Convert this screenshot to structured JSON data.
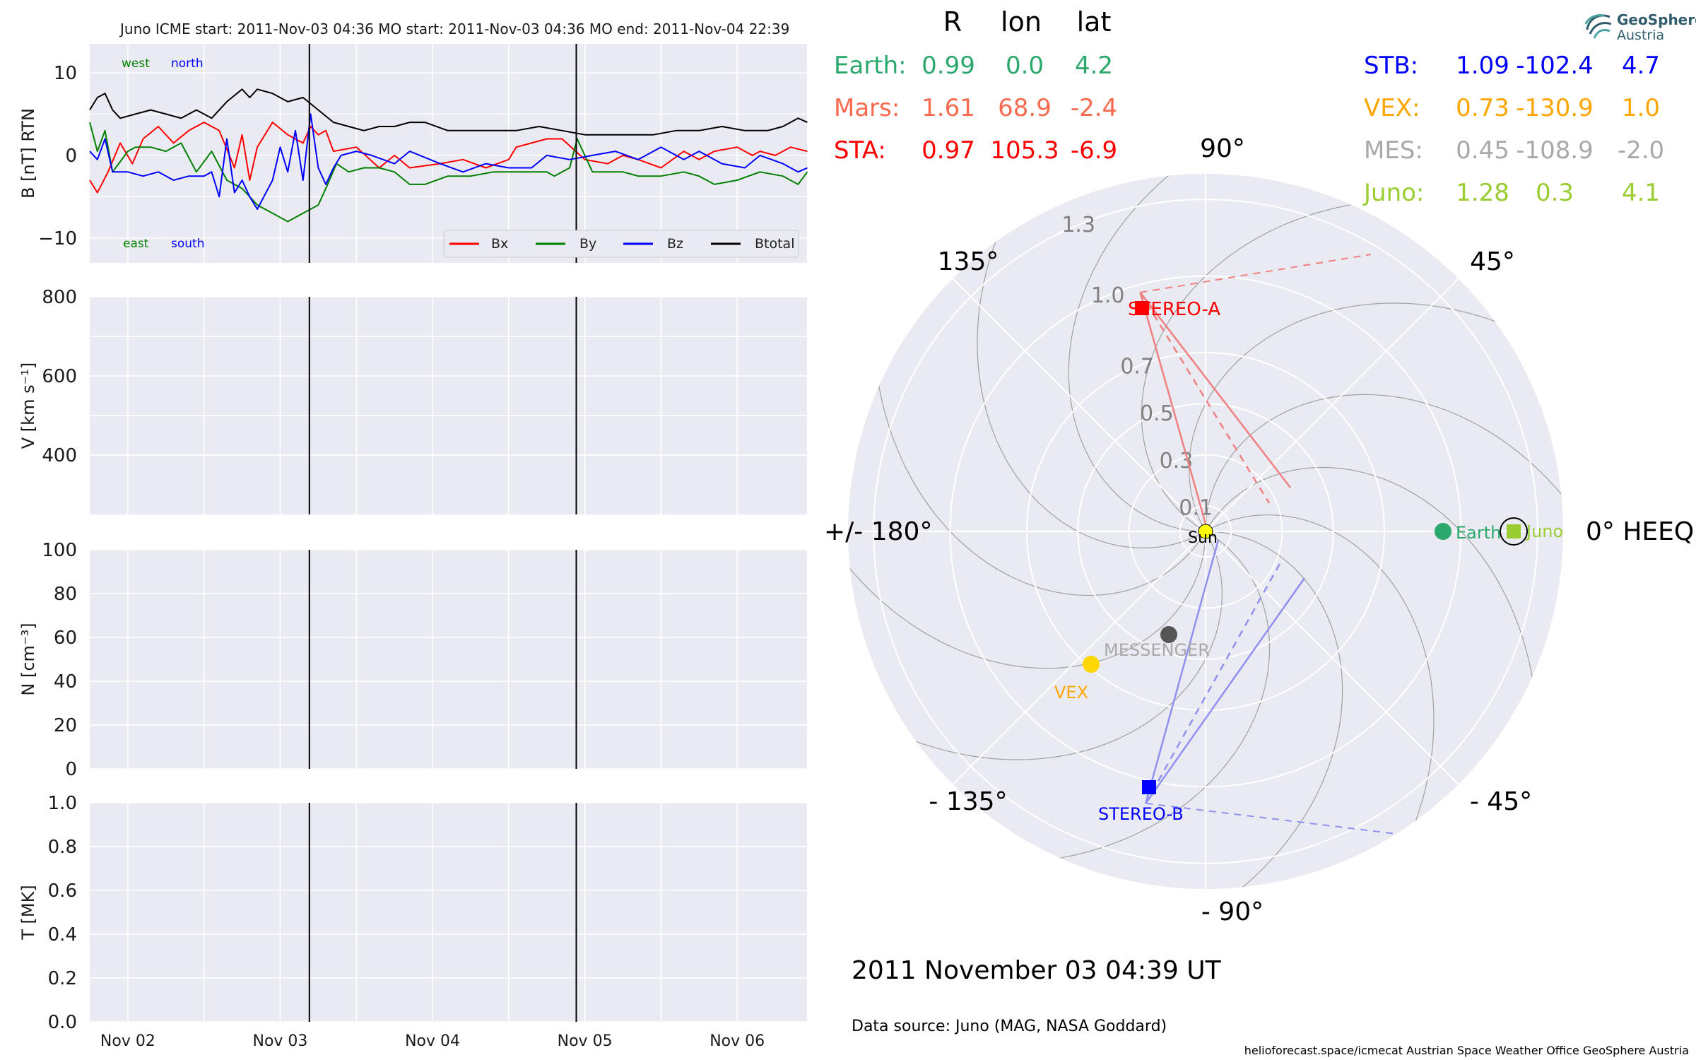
{
  "header": {
    "title": "Juno    ICME start: 2011-Nov-03 04:36   MO start: 2011-Nov-03 04:36   MO end: 2011-Nov-04 22:39"
  },
  "logo": {
    "name1": "GeoSphere",
    "name2": "Austria"
  },
  "positions_table": {
    "columns": [
      "R",
      "lon",
      "lat"
    ],
    "rows_left": [
      {
        "name": "Earth:",
        "R": "0.99",
        "lon": "0.0",
        "lat": "4.2",
        "color": "#2ba86b"
      },
      {
        "name": "Mars:",
        "R": "1.61",
        "lon": "68.9",
        "lat": "-2.4",
        "color": "#fa6a4e"
      },
      {
        "name": "STA:",
        "R": "0.97",
        "lon": "105.3",
        "lat": "-6.9",
        "color": "#ff0000"
      }
    ],
    "rows_right": [
      {
        "name": "STB:",
        "R": "1.09",
        "lon": "-102.4",
        "lat": "4.7",
        "color": "#0000ff"
      },
      {
        "name": "VEX:",
        "R": "0.73",
        "lon": "-130.9",
        "lat": "1.0",
        "color": "#ffa500"
      },
      {
        "name": "MES:",
        "R": "0.45",
        "lon": "-108.9",
        "lat": "-2.0",
        "color": "#a9a9a9"
      },
      {
        "name": "Juno:",
        "R": "1.28",
        "lon": "0.3",
        "lat": "4.1",
        "color": "#9acd32"
      }
    ]
  },
  "polar_plot": {
    "angle_labels": [
      "90°",
      "45°",
      "0° HEEQ",
      "- 45°",
      "- 90°",
      "- 135°",
      "+/- 180°",
      "135°"
    ],
    "radial_labels": [
      "0.1",
      "0.3",
      "0.5",
      "0.7",
      "1.0",
      "1.3"
    ],
    "bodies": [
      {
        "name": "Sun",
        "label": "Sun",
        "r": 0.0,
        "lon": 0.0,
        "shape": "circle",
        "color": "#ffff00",
        "label_color": "#000000"
      },
      {
        "name": "Earth",
        "label": "Earth",
        "r": 0.99,
        "lon": 0.0,
        "shape": "circle",
        "color": "#2ba86b",
        "label_color": "#2ba86b"
      },
      {
        "name": "Juno",
        "label": "Juno",
        "r": 1.28,
        "lon": 0.3,
        "shape": "square",
        "color": "#9acd32",
        "label_color": "#9acd32"
      },
      {
        "name": "STEREO-A",
        "label": "STEREO-A",
        "r": 0.97,
        "lon": 105.3,
        "shape": "square",
        "color": "#ff0000",
        "label_color": "#ff0000"
      },
      {
        "name": "STEREO-B",
        "label": "STEREO-B",
        "r": 1.09,
        "lon": -102.4,
        "shape": "square",
        "color": "#0000ff",
        "label_color": "#0000ff"
      },
      {
        "name": "VEX",
        "label": "VEX",
        "r": 0.73,
        "lon": -130.9,
        "shape": "circle",
        "color": "#ffd700",
        "label_color": "#ffa500"
      },
      {
        "name": "MESSENGER",
        "label": "MESSENGER",
        "r": 0.45,
        "lon": -108.9,
        "shape": "circle",
        "color": "#555555",
        "label_color": "#a9a9a9"
      }
    ],
    "date": "2011 November 03  04:39 UT",
    "data_source": "Data source: Juno (MAG, NASA Goddard)"
  },
  "footer": "helioforecast.space/icmecat   Austrian Space Weather Office   GeoSphere Austria",
  "chart_data": [
    {
      "type": "line",
      "panel": "magnetic-field",
      "ylabel": "B [nT] RTN",
      "ylim": [
        -13,
        13.5
      ],
      "yticks": [
        10,
        0,
        -10
      ],
      "ytick_labels": [
        "10",
        "0",
        "−10"
      ],
      "xlim": [
        "2011-11-01T18:00",
        "2011-11-06T11:00"
      ],
      "annotations": {
        "west": "west",
        "north": "north",
        "east": "east",
        "south": "south"
      },
      "event_lines": [
        "2011-11-03T04:36",
        "2011-11-04T22:39"
      ],
      "legend_position": "lower-right",
      "series": [
        {
          "name": "Bx",
          "color": "#ff0000",
          "values": [
            [
              0.0,
              -3.0
            ],
            [
              0.05,
              -4.5
            ],
            [
              0.12,
              -2.0
            ],
            [
              0.2,
              1.5
            ],
            [
              0.28,
              -1.0
            ],
            [
              0.35,
              2.0
            ],
            [
              0.45,
              3.5
            ],
            [
              0.55,
              1.5
            ],
            [
              0.65,
              3.0
            ],
            [
              0.75,
              4.0
            ],
            [
              0.85,
              3.0
            ],
            [
              0.95,
              -1.5
            ],
            [
              1.0,
              2.5
            ],
            [
              1.05,
              -3.0
            ],
            [
              1.1,
              1.0
            ],
            [
              1.2,
              4.0
            ],
            [
              1.3,
              2.5
            ],
            [
              1.4,
              1.5
            ],
            [
              1.45,
              3.5
            ],
            [
              1.5,
              2.5
            ],
            [
              1.55,
              3.0
            ],
            [
              1.6,
              0.5
            ],
            [
              1.75,
              1.0
            ],
            [
              1.9,
              -1.5
            ],
            [
              2.0,
              0.0
            ],
            [
              2.1,
              -1.5
            ],
            [
              2.3,
              -1.0
            ],
            [
              2.45,
              -0.5
            ],
            [
              2.6,
              -1.5
            ],
            [
              2.75,
              -0.5
            ],
            [
              2.8,
              1.0
            ],
            [
              2.9,
              1.5
            ],
            [
              3.0,
              2.0
            ],
            [
              3.1,
              2.0
            ],
            [
              3.25,
              -0.5
            ],
            [
              3.4,
              -1.0
            ],
            [
              3.5,
              0.0
            ],
            [
              3.6,
              -0.5
            ],
            [
              3.75,
              -1.5
            ],
            [
              3.9,
              0.5
            ],
            [
              4.0,
              -0.5
            ],
            [
              4.1,
              0.5
            ],
            [
              4.25,
              1.0
            ],
            [
              4.35,
              0.0
            ],
            [
              4.4,
              0.5
            ],
            [
              4.5,
              0.0
            ],
            [
              4.6,
              1.0
            ],
            [
              4.71,
              0.5
            ]
          ]
        },
        {
          "name": "By",
          "color": "#008000",
          "values": [
            [
              0.0,
              4.0
            ],
            [
              0.05,
              0.5
            ],
            [
              0.1,
              3.0
            ],
            [
              0.15,
              -2.0
            ],
            [
              0.25,
              0.5
            ],
            [
              0.3,
              1.0
            ],
            [
              0.4,
              1.0
            ],
            [
              0.5,
              0.5
            ],
            [
              0.6,
              1.5
            ],
            [
              0.7,
              -2.0
            ],
            [
              0.8,
              0.5
            ],
            [
              0.9,
              -3.0
            ],
            [
              1.0,
              -4.0
            ],
            [
              1.1,
              -6.0
            ],
            [
              1.2,
              -7.0
            ],
            [
              1.3,
              -8.0
            ],
            [
              1.4,
              -7.0
            ],
            [
              1.5,
              -6.0
            ],
            [
              1.55,
              -4.0
            ],
            [
              1.62,
              -1.0
            ],
            [
              1.7,
              -2.0
            ],
            [
              1.8,
              -1.5
            ],
            [
              1.9,
              -1.5
            ],
            [
              2.0,
              -2.0
            ],
            [
              2.1,
              -3.5
            ],
            [
              2.2,
              -3.5
            ],
            [
              2.35,
              -2.5
            ],
            [
              2.5,
              -2.5
            ],
            [
              2.65,
              -2.0
            ],
            [
              2.8,
              -2.0
            ],
            [
              3.0,
              -2.0
            ],
            [
              3.05,
              -2.5
            ],
            [
              3.15,
              -1.5
            ],
            [
              3.2,
              2.0
            ],
            [
              3.3,
              -2.0
            ],
            [
              3.5,
              -2.0
            ],
            [
              3.6,
              -2.5
            ],
            [
              3.75,
              -2.5
            ],
            [
              3.9,
              -2.0
            ],
            [
              4.0,
              -2.5
            ],
            [
              4.1,
              -3.5
            ],
            [
              4.25,
              -3.0
            ],
            [
              4.4,
              -2.0
            ],
            [
              4.55,
              -2.5
            ],
            [
              4.65,
              -3.5
            ],
            [
              4.71,
              -2.0
            ]
          ]
        },
        {
          "name": "Bz",
          "color": "#0000ff",
          "values": [
            [
              0.0,
              0.5
            ],
            [
              0.05,
              -0.5
            ],
            [
              0.1,
              2.0
            ],
            [
              0.15,
              -2.0
            ],
            [
              0.25,
              -2.0
            ],
            [
              0.35,
              -2.5
            ],
            [
              0.45,
              -2.0
            ],
            [
              0.55,
              -3.0
            ],
            [
              0.65,
              -2.5
            ],
            [
              0.75,
              -2.5
            ],
            [
              0.8,
              -2.0
            ],
            [
              0.85,
              -5.0
            ],
            [
              0.9,
              2.0
            ],
            [
              0.95,
              -4.5
            ],
            [
              1.0,
              -3.0
            ],
            [
              1.05,
              -5.0
            ],
            [
              1.1,
              -6.5
            ],
            [
              1.2,
              -3.0
            ],
            [
              1.25,
              1.0
            ],
            [
              1.3,
              -2.0
            ],
            [
              1.35,
              3.0
            ],
            [
              1.4,
              -3.0
            ],
            [
              1.45,
              5.0
            ],
            [
              1.5,
              -1.5
            ],
            [
              1.55,
              -3.5
            ],
            [
              1.6,
              -1.5
            ],
            [
              1.65,
              0.0
            ],
            [
              1.75,
              0.5
            ],
            [
              1.85,
              0.0
            ],
            [
              2.0,
              -1.0
            ],
            [
              2.1,
              0.5
            ],
            [
              2.3,
              -1.0
            ],
            [
              2.45,
              -2.0
            ],
            [
              2.6,
              -1.0
            ],
            [
              2.75,
              -1.5
            ],
            [
              2.9,
              -1.5
            ],
            [
              3.0,
              0.0
            ],
            [
              3.15,
              -0.5
            ],
            [
              3.3,
              0.0
            ],
            [
              3.45,
              0.5
            ],
            [
              3.6,
              -0.5
            ],
            [
              3.75,
              1.0
            ],
            [
              3.9,
              -0.5
            ],
            [
              4.0,
              0.5
            ],
            [
              4.15,
              -1.0
            ],
            [
              4.3,
              -1.5
            ],
            [
              4.4,
              0.0
            ],
            [
              4.55,
              -1.0
            ],
            [
              4.65,
              -2.0
            ],
            [
              4.71,
              -1.5
            ]
          ]
        },
        {
          "name": "Btotal",
          "color": "#000000",
          "values": [
            [
              0.0,
              5.5
            ],
            [
              0.05,
              7.0
            ],
            [
              0.1,
              7.5
            ],
            [
              0.15,
              5.5
            ],
            [
              0.2,
              4.5
            ],
            [
              0.3,
              5.0
            ],
            [
              0.4,
              5.5
            ],
            [
              0.5,
              5.0
            ],
            [
              0.6,
              4.5
            ],
            [
              0.7,
              5.5
            ],
            [
              0.8,
              4.5
            ],
            [
              0.9,
              6.5
            ],
            [
              1.0,
              8.0
            ],
            [
              1.05,
              7.0
            ],
            [
              1.1,
              8.0
            ],
            [
              1.2,
              7.5
            ],
            [
              1.3,
              6.5
            ],
            [
              1.4,
              7.0
            ],
            [
              1.5,
              5.5
            ],
            [
              1.6,
              4.0
            ],
            [
              1.7,
              3.5
            ],
            [
              1.8,
              3.0
            ],
            [
              1.9,
              3.5
            ],
            [
              2.0,
              3.5
            ],
            [
              2.1,
              4.0
            ],
            [
              2.2,
              4.0
            ],
            [
              2.35,
              3.0
            ],
            [
              2.5,
              3.0
            ],
            [
              2.65,
              3.0
            ],
            [
              2.8,
              3.0
            ],
            [
              2.95,
              3.5
            ],
            [
              3.1,
              3.0
            ],
            [
              3.25,
              2.5
            ],
            [
              3.4,
              2.5
            ],
            [
              3.55,
              2.5
            ],
            [
              3.7,
              2.5
            ],
            [
              3.85,
              3.0
            ],
            [
              4.0,
              3.0
            ],
            [
              4.15,
              3.5
            ],
            [
              4.3,
              3.0
            ],
            [
              4.45,
              3.0
            ],
            [
              4.55,
              3.5
            ],
            [
              4.65,
              4.5
            ],
            [
              4.71,
              4.0
            ]
          ]
        }
      ]
    },
    {
      "type": "line",
      "panel": "velocity",
      "ylabel": "V [km s⁻¹]",
      "ylim": [
        250,
        800
      ],
      "yticks": [
        400,
        600,
        800
      ],
      "ytick_labels": [
        "400",
        "600",
        "800"
      ],
      "event_lines": [
        "2011-11-03T04:36",
        "2011-11-04T22:39"
      ],
      "series": []
    },
    {
      "type": "line",
      "panel": "density",
      "ylabel": "N [cm⁻³]",
      "ylim": [
        0,
        100
      ],
      "yticks": [
        0,
        20,
        40,
        60,
        80,
        100
      ],
      "ytick_labels": [
        "0",
        "20",
        "40",
        "60",
        "80",
        "100"
      ],
      "event_lines": [
        "2011-11-03T04:36",
        "2011-11-04T22:39"
      ],
      "series": []
    },
    {
      "type": "line",
      "panel": "temperature",
      "ylabel": "T [MK]",
      "ylim": [
        0.0,
        1.0
      ],
      "yticks": [
        0.0,
        0.2,
        0.4,
        0.6,
        0.8,
        1.0
      ],
      "ytick_labels": [
        "0.0",
        "0.2",
        "0.4",
        "0.6",
        "0.8",
        "1.0"
      ],
      "xtick_labels": [
        "Nov 02",
        "Nov 03",
        "Nov 04",
        "Nov 05",
        "Nov 06"
      ],
      "xticks": [
        "2011-11-02",
        "2011-11-03",
        "2011-11-04",
        "2011-11-05",
        "2011-11-06"
      ],
      "event_lines": [
        "2011-11-03T04:36",
        "2011-11-04T22:39"
      ],
      "series": []
    }
  ]
}
